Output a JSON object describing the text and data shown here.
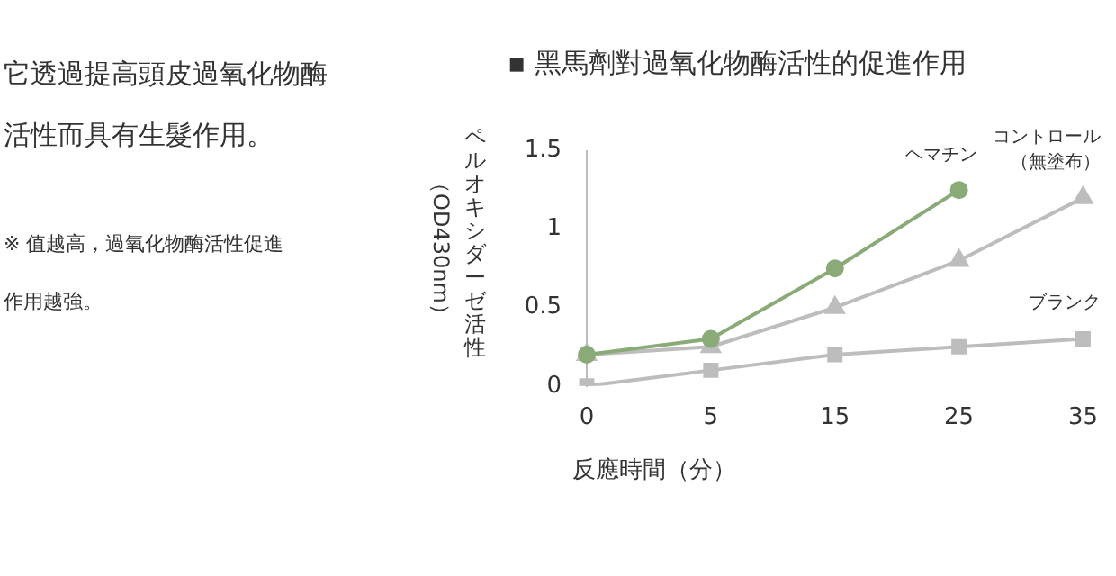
{
  "chart_data": {
    "type": "line",
    "title": "▪ 黑馬劑對過氧化物酶活性的促進作用",
    "xlabel": "反應時間（分）",
    "ylabel": "ペルオキシダーゼ活性（OD430nm）",
    "annotations": [
      "它透過提高頭皮過氧化物酶活性而具有生髮作用。",
      "※ 值越高，過氧化物酶活性促進作用越強。"
    ],
    "categories": [
      "0",
      "5",
      "15",
      "25",
      "35"
    ],
    "series": [
      {
        "name": "ヘマチン",
        "color": "#8aab78",
        "marker": "circle",
        "values": [
          0.2,
          0.3,
          0.75,
          1.25,
          null
        ]
      },
      {
        "name": "コントロール（無塗布）",
        "color": "#bdbdbd",
        "marker": "triangle",
        "values": [
          0.2,
          0.25,
          0.5,
          0.8,
          1.2
        ]
      },
      {
        "name": "ブランク",
        "color": "#bdbdbd",
        "marker": "square",
        "values": [
          0,
          0.1,
          0.2,
          0.25,
          0.3
        ]
      }
    ],
    "ylim": [
      0,
      1.5
    ],
    "yticks": [
      0,
      0.5,
      1,
      1.5
    ],
    "grid": false,
    "legend": false
  }
}
